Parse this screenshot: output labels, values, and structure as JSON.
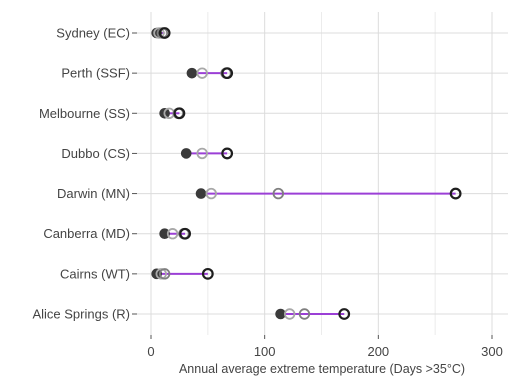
{
  "chart_data": {
    "type": "dumbbell",
    "xlabel": "Annual average extreme temperature (Days >35°C)",
    "ylabel": "",
    "xlim": [
      -5,
      305
    ],
    "xticks": [
      0,
      100,
      200,
      300
    ],
    "grid": true,
    "categories": [
      "Sydney (EC)",
      "Perth (SSF)",
      "Melbourne (SS)",
      "Dubbo (CS)",
      "Darwin (MN)",
      "Canberra (MD)",
      "Cairns (WT)",
      "Alice Springs (R)"
    ],
    "series": [
      {
        "values": [
          5,
          36,
          12,
          31,
          44,
          12,
          5,
          114
        ],
        "marker": "filled",
        "color": "#3a3a3a"
      },
      {
        "values": [
          7,
          45,
          16,
          45,
          53,
          19,
          9,
          122
        ],
        "marker": "open-light",
        "color": "#a8a8a8"
      },
      {
        "values": [
          10,
          66,
          24,
          67,
          112,
          29,
          12,
          135
        ],
        "marker": "open-mid",
        "color": "#7f7f7f"
      },
      {
        "values": [
          12,
          67,
          25,
          67,
          268,
          30,
          50,
          170
        ],
        "marker": "open-dark",
        "color": "#1e1e1e"
      }
    ],
    "segment_color": "#9b3fd6"
  }
}
